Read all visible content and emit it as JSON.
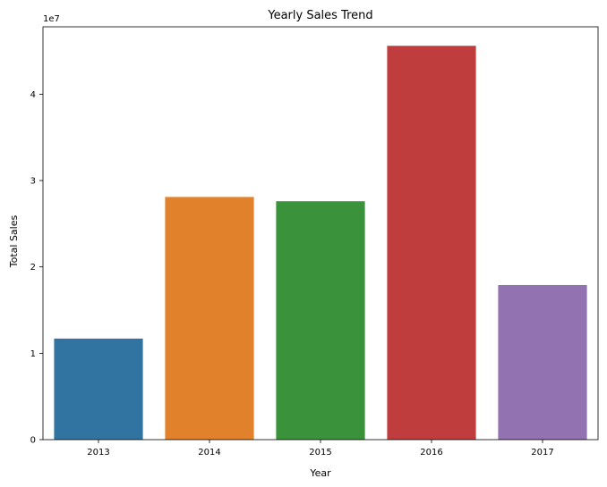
{
  "chart_data": {
    "type": "bar",
    "title": "Yearly Sales Trend",
    "xlabel": "Year",
    "ylabel": "Total Sales",
    "offset_label": "1e7",
    "categories": [
      "2013",
      "2014",
      "2015",
      "2016",
      "2017"
    ],
    "values": [
      11700000,
      28100000,
      27600000,
      45600000,
      17900000
    ],
    "colors": [
      "#3274a1",
      "#e1812c",
      "#3a923a",
      "#c03d3e",
      "#9372b2"
    ],
    "ylim": [
      0,
      47800000
    ],
    "yticks": [
      0,
      10000000,
      20000000,
      30000000,
      40000000
    ],
    "ytick_labels": [
      "0",
      "1",
      "2",
      "3",
      "4"
    ],
    "grid": false,
    "legend": "none"
  }
}
